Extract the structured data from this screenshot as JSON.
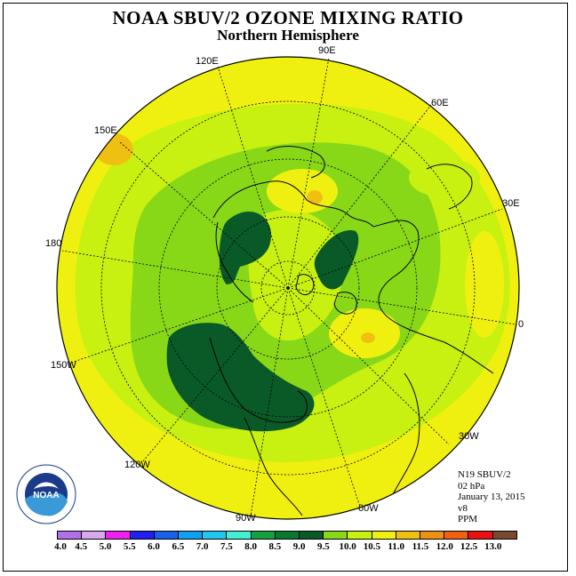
{
  "title": "NOAA SBUV/2 OZONE MIXING RATIO",
  "subtitle": "Northern Hemisphere",
  "longitude_labels": {
    "e90": "90E",
    "e120": "120E",
    "e60": "60E",
    "e150": "150E",
    "e30": "30E",
    "d180": "180",
    "d0": "0",
    "w150": "150W",
    "w30": "30W",
    "w120": "120W",
    "w60": "60W",
    "w90": "90W"
  },
  "info": {
    "instrument": "N19 SBUV/2",
    "level": "02 hPa",
    "date": "January 13, 2015",
    "version": "v8",
    "units": "PPM"
  },
  "logo": {
    "text": "NOAA",
    "ring_text": "NATIONAL OCEANIC AND ATMOSPHERIC ADMINISTRATION · U.S. DEPARTMENT OF COMMERCE"
  },
  "colorbar": {
    "colors": [
      "#b070e8",
      "#d8a8f0",
      "#f020f0",
      "#2020f0",
      "#1860e8",
      "#10a0f0",
      "#20c8f0",
      "#40f0d0",
      "#18a040",
      "#0a7830",
      "#0a5a28",
      "#88d818",
      "#c8f010",
      "#f0f010",
      "#f0c010",
      "#f09010",
      "#f06010",
      "#e81010",
      "#7a4a30"
    ],
    "ticks": [
      "4.0",
      "4.5",
      "5.0",
      "5.5",
      "6.0",
      "6.5",
      "7.0",
      "7.5",
      "8.0",
      "8.5",
      "9.0",
      "9.5",
      "10.0",
      "10.5",
      "11.0",
      "11.5",
      "12.0",
      "12.5",
      "13.0"
    ]
  }
}
